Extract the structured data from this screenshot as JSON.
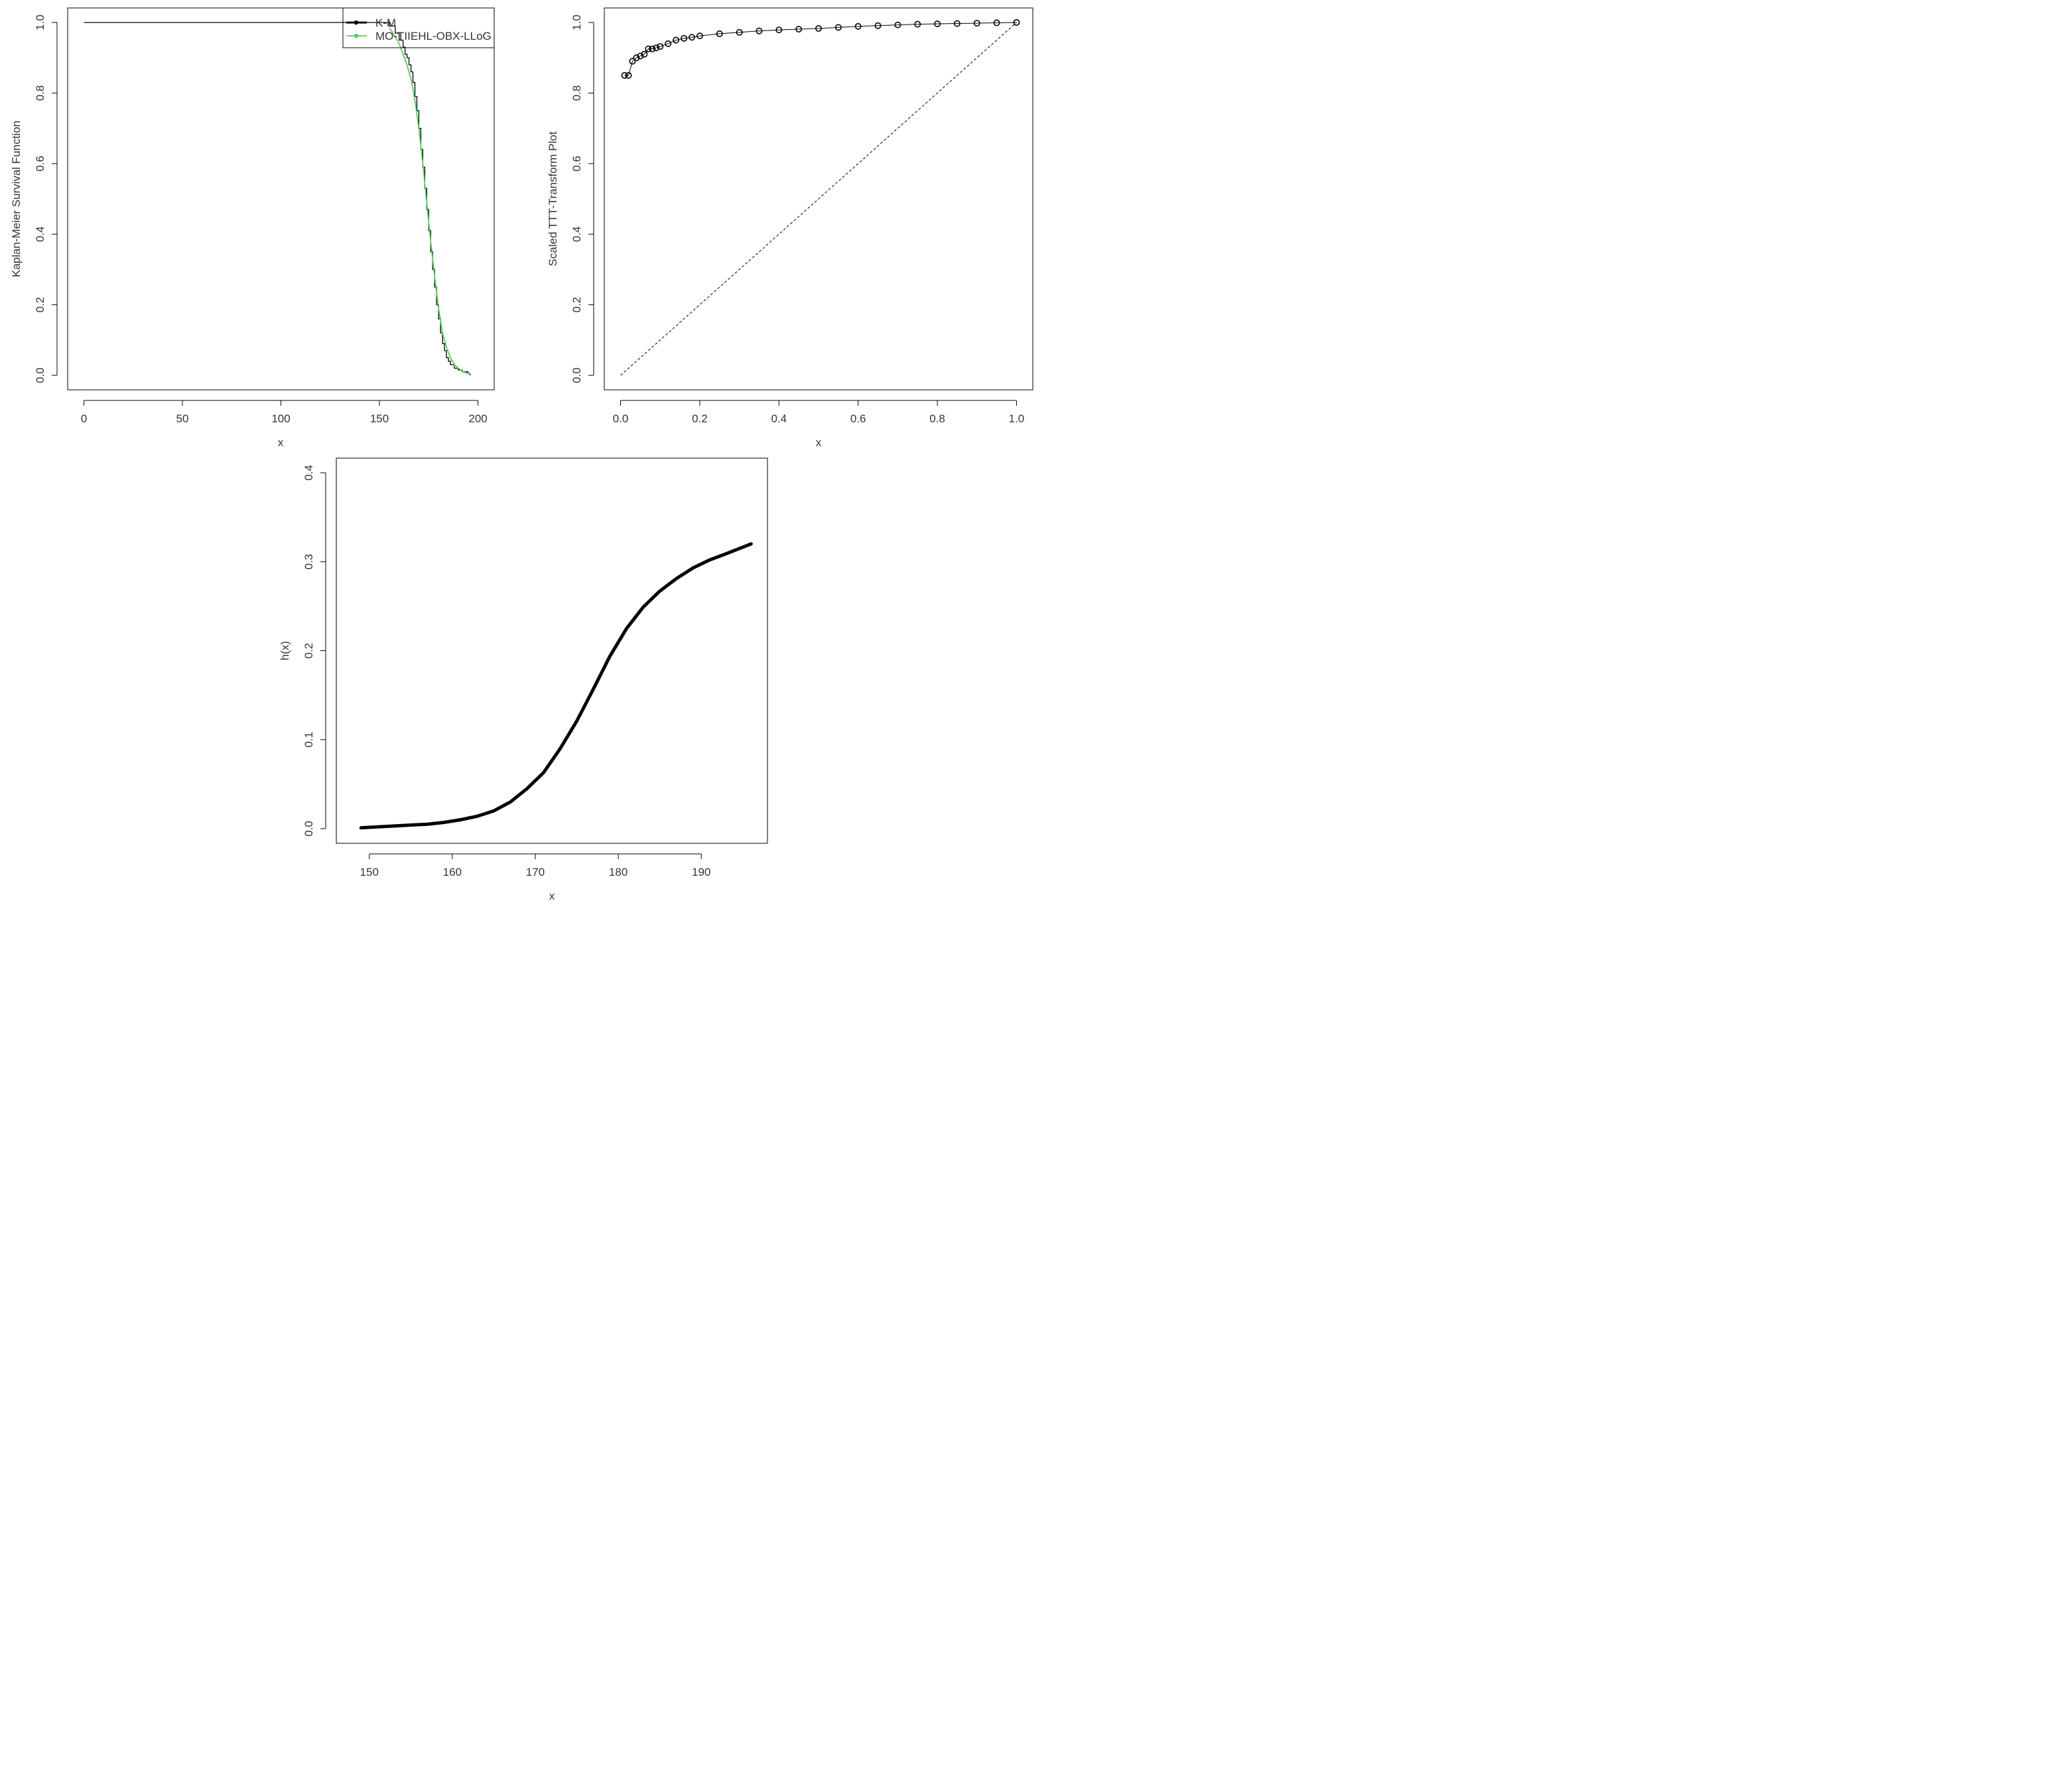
{
  "chart_data": [
    {
      "type": "line",
      "xlabel": "x",
      "ylabel": "Kaplan-Meier Survival Function",
      "xlim": [
        0,
        200
      ],
      "ylim": [
        0,
        1
      ],
      "xticks": [
        "0",
        "50",
        "100",
        "150",
        "200"
      ],
      "yticks": [
        "0.0",
        "0.2",
        "0.4",
        "0.6",
        "0.8",
        "1.0"
      ],
      "legend_position": "top-right",
      "series": [
        {
          "name": "K-M",
          "color": "#000000",
          "step": true,
          "x": [
            0,
            150,
            155,
            158,
            160,
            162,
            163,
            164,
            165,
            166,
            167,
            168,
            169,
            170,
            171,
            172,
            173,
            174,
            175,
            176,
            177,
            178,
            179,
            180,
            181,
            182,
            183,
            184,
            185,
            186,
            188,
            190,
            192,
            195,
            196
          ],
          "y": [
            1.0,
            1.0,
            0.99,
            0.97,
            0.95,
            0.93,
            0.91,
            0.9,
            0.88,
            0.86,
            0.83,
            0.79,
            0.75,
            0.7,
            0.64,
            0.59,
            0.53,
            0.47,
            0.41,
            0.35,
            0.3,
            0.25,
            0.2,
            0.16,
            0.12,
            0.09,
            0.07,
            0.05,
            0.04,
            0.03,
            0.02,
            0.015,
            0.01,
            0.005,
            0.0
          ]
        },
        {
          "name": "MO-TIIEHL-OBX-LLoG",
          "color": "#5cc85c",
          "step": false,
          "x": [
            155,
            158,
            160,
            162,
            164,
            166,
            168,
            170,
            172,
            174,
            176,
            178,
            180,
            182,
            184,
            186,
            188,
            190,
            192,
            194,
            196
          ],
          "y": [
            0.985,
            0.96,
            0.94,
            0.91,
            0.88,
            0.84,
            0.78,
            0.7,
            0.6,
            0.49,
            0.38,
            0.28,
            0.19,
            0.12,
            0.08,
            0.05,
            0.03,
            0.02,
            0.012,
            0.007,
            0.004
          ]
        }
      ]
    },
    {
      "type": "scatter",
      "xlabel": "x",
      "ylabel": "Scaled TTT-Transform Plot",
      "xlim": [
        0,
        1
      ],
      "ylim": [
        0,
        1
      ],
      "xticks": [
        "0.0",
        "0.2",
        "0.4",
        "0.6",
        "0.8",
        "1.0"
      ],
      "yticks": [
        "0.0",
        "0.2",
        "0.4",
        "0.6",
        "0.8",
        "1.0"
      ],
      "reference_line": {
        "from": [
          0,
          0
        ],
        "to": [
          1,
          1
        ],
        "style": "dashed"
      },
      "series": [
        {
          "x": [
            0.01,
            0.02,
            0.03,
            0.04,
            0.05,
            0.06,
            0.07,
            0.08,
            0.09,
            0.1,
            0.12,
            0.14,
            0.16,
            0.18,
            0.2,
            0.25,
            0.3,
            0.35,
            0.4,
            0.45,
            0.5,
            0.55,
            0.6,
            0.65,
            0.7,
            0.75,
            0.8,
            0.85,
            0.9,
            0.95,
            1.0
          ],
          "y": [
            0.85,
            0.85,
            0.89,
            0.9,
            0.905,
            0.91,
            0.925,
            0.925,
            0.928,
            0.932,
            0.94,
            0.95,
            0.955,
            0.958,
            0.962,
            0.968,
            0.972,
            0.976,
            0.979,
            0.981,
            0.983,
            0.986,
            0.989,
            0.991,
            0.993,
            0.995,
            0.996,
            0.997,
            0.998,
            0.999,
            1.0
          ]
        }
      ]
    },
    {
      "type": "line",
      "xlabel": "x",
      "ylabel": "h(x)",
      "xlim": [
        147,
        198
      ],
      "ylim": [
        -0.01,
        0.42
      ],
      "xticks": [
        "150",
        "160",
        "170",
        "180",
        "190"
      ],
      "yticks": [
        "0.0",
        "0.1",
        "0.2",
        "0.3",
        "0.4"
      ],
      "series": [
        {
          "x": [
            149,
            151,
            153,
            155,
            157,
            159,
            161,
            163,
            165,
            167,
            169,
            171,
            173,
            175,
            177,
            179,
            181,
            183,
            185,
            187,
            189,
            191,
            193,
            196
          ],
          "y": [
            0.001,
            0.002,
            0.003,
            0.004,
            0.005,
            0.007,
            0.01,
            0.014,
            0.02,
            0.03,
            0.045,
            0.063,
            0.09,
            0.121,
            0.157,
            0.194,
            0.225,
            0.249,
            0.267,
            0.281,
            0.293,
            0.302,
            0.309,
            0.32
          ]
        }
      ]
    }
  ]
}
